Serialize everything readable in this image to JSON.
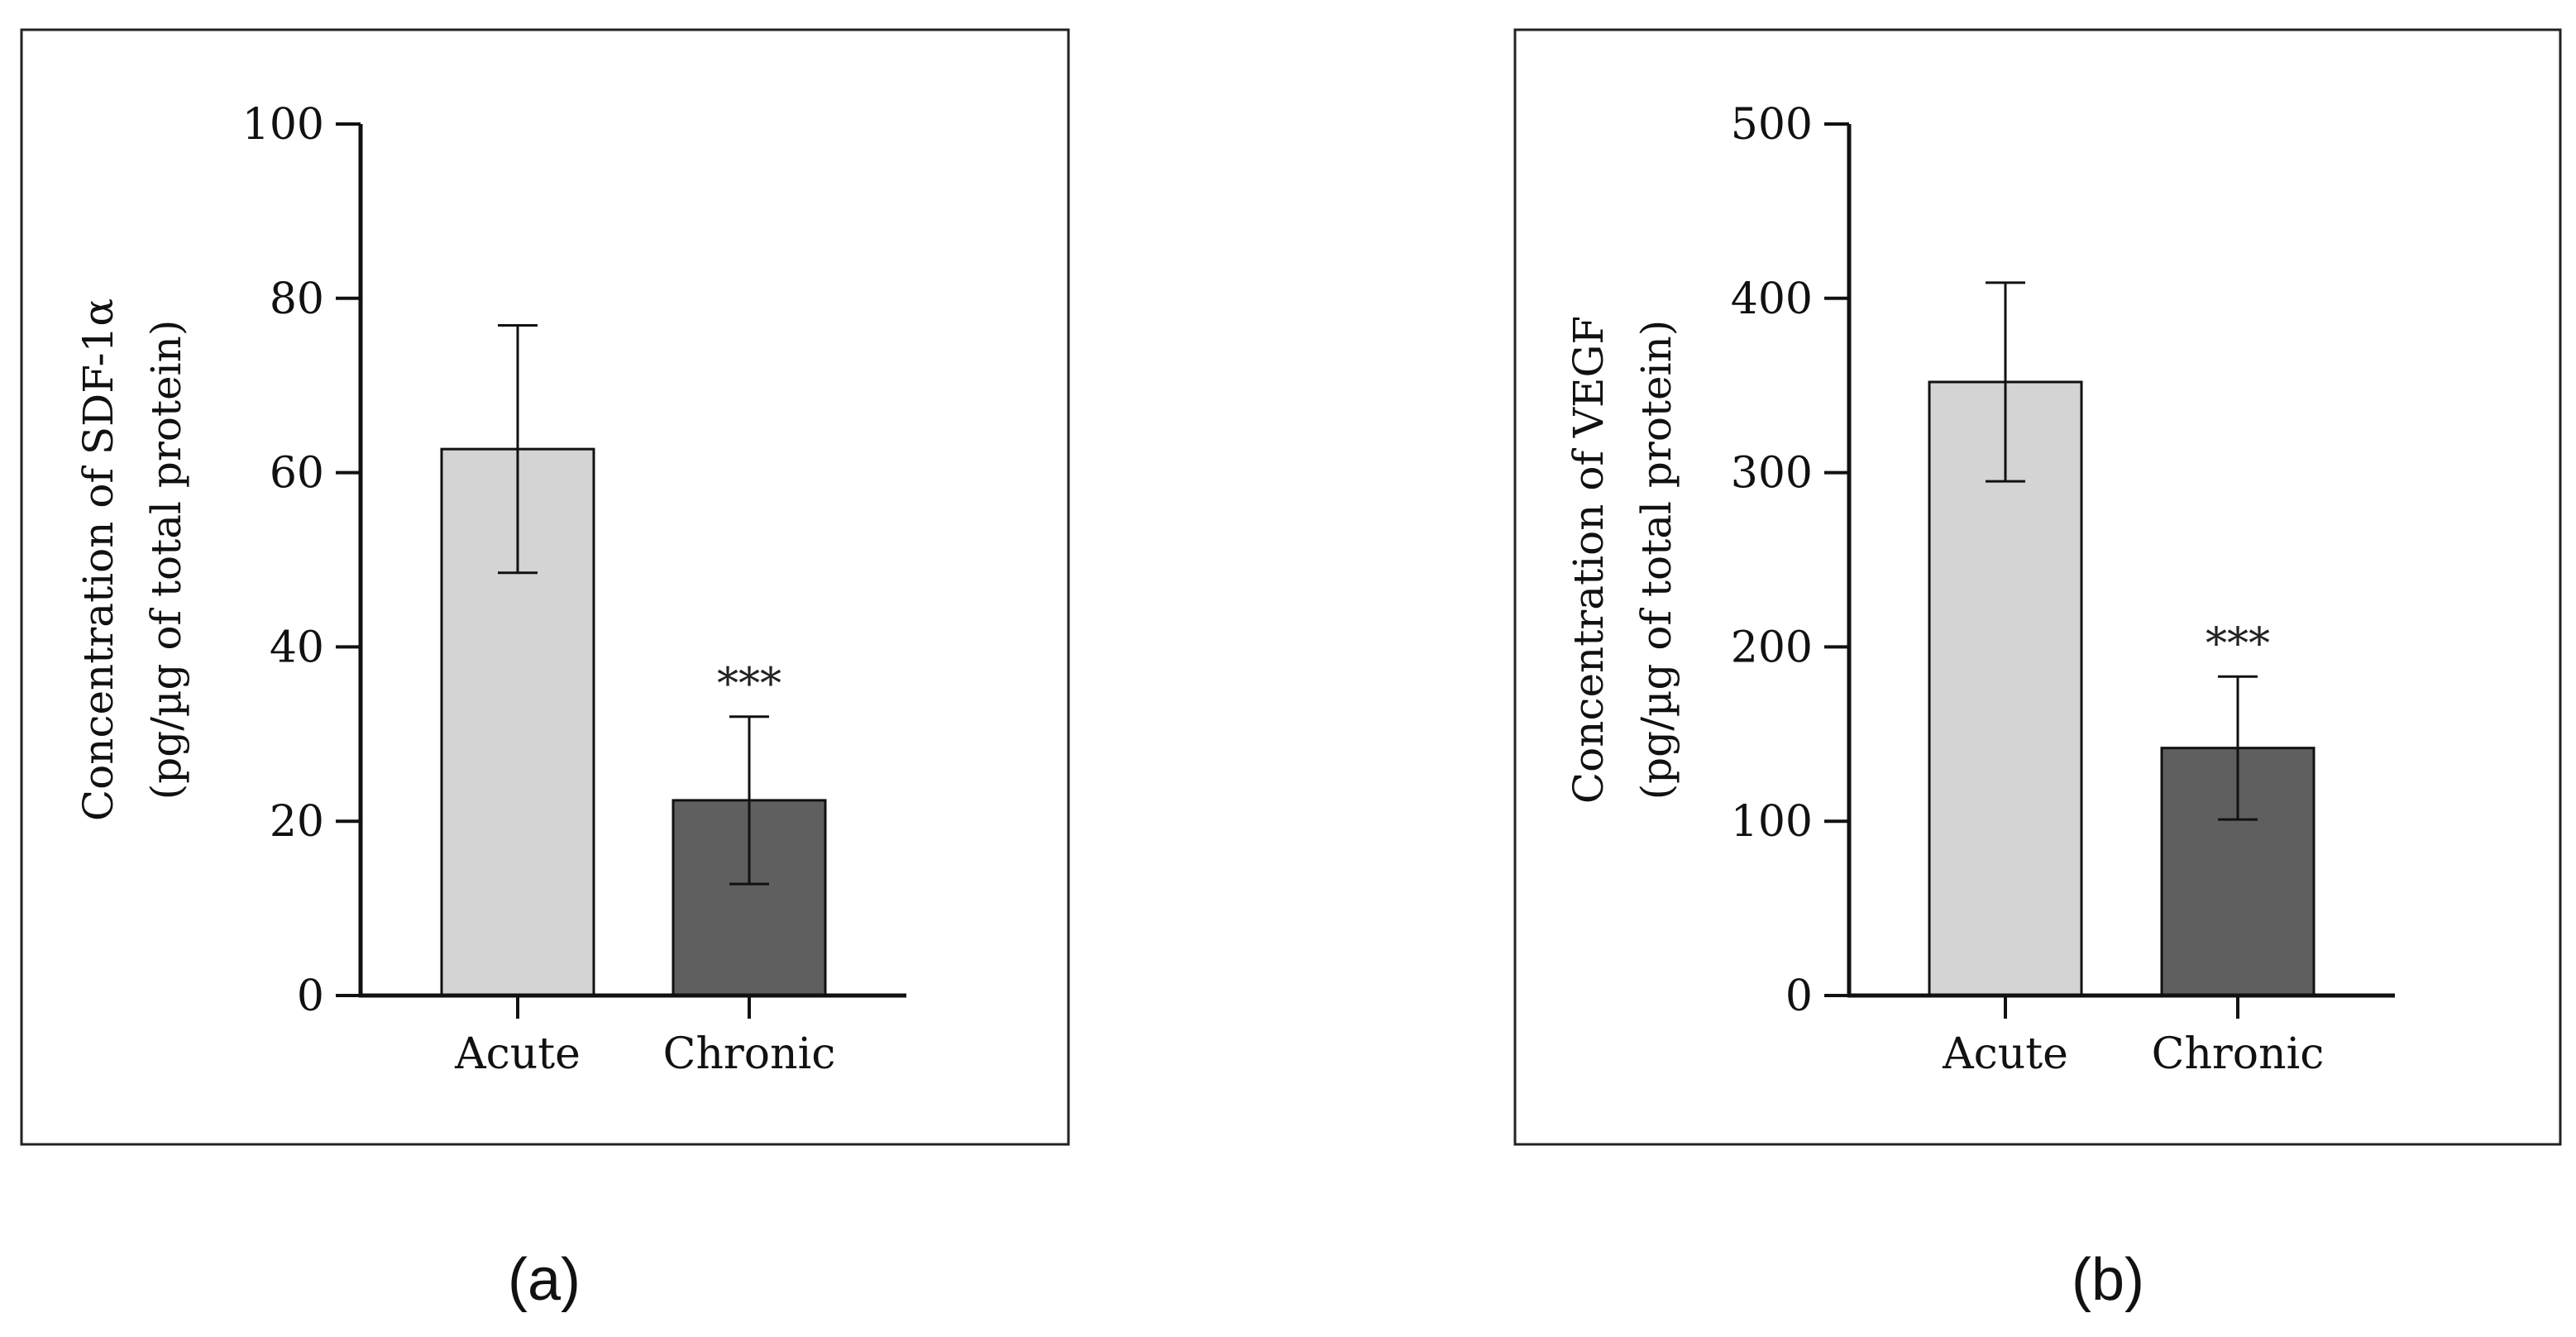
{
  "figure": {
    "panels": [
      {
        "label": "(a)"
      },
      {
        "label": "(b)"
      }
    ]
  },
  "chart_data": [
    {
      "type": "bar",
      "categories": [
        "Acute",
        "Chronic"
      ],
      "values": [
        62.7,
        22.4
      ],
      "errors": [
        14.2,
        9.6
      ],
      "significance": [
        "",
        "***"
      ],
      "ylabel": "Concentration of SDF-1α",
      "ylabel2": "(pg/µg of total protein)",
      "ylim": [
        0,
        100
      ],
      "yticks": [
        0,
        20,
        40,
        60,
        80,
        100
      ],
      "bar_colors": [
        "#d4d4d4",
        "#5f5f5f"
      ],
      "grid": false,
      "legend": "none"
    },
    {
      "type": "bar",
      "categories": [
        "Acute",
        "Chronic"
      ],
      "values": [
        352,
        142
      ],
      "errors": [
        57,
        41
      ],
      "significance": [
        "",
        "***"
      ],
      "ylabel": "Concentration of VEGF",
      "ylabel2": "(pg/µg of total protein)",
      "ylim": [
        0,
        500
      ],
      "yticks": [
        0,
        100,
        200,
        300,
        400,
        500
      ],
      "bar_colors": [
        "#d4d4d4",
        "#5f5f5f"
      ],
      "grid": false,
      "legend": "none"
    }
  ]
}
